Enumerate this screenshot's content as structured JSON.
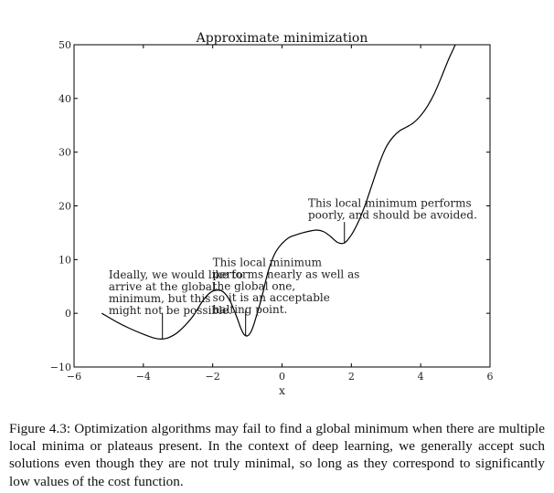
{
  "chart_data": {
    "type": "line",
    "title": "Approximate minimization",
    "xlabel": "x",
    "ylabel": "",
    "xlim": [
      -6,
      6
    ],
    "ylim": [
      -10,
      50
    ],
    "xticks": [
      -6,
      -4,
      -2,
      0,
      2,
      4,
      6
    ],
    "yticks": [
      -10,
      0,
      10,
      20,
      30,
      40,
      50
    ],
    "xtick_labels": [
      "−6",
      "−4",
      "−2",
      "0",
      "2",
      "4",
      "6"
    ],
    "ytick_labels": [
      "−10",
      "0",
      "10",
      "20",
      "30",
      "40",
      "50"
    ],
    "grid": false,
    "series": [
      {
        "color": "#000000",
        "x": [
          -5.2,
          -4.8,
          -4.4,
          -4.0,
          -3.7,
          -3.5,
          -3.3,
          -3.0,
          -2.6,
          -2.3,
          -2.1,
          -1.9,
          -1.7,
          -1.5,
          -1.3,
          -1.2,
          -1.1,
          -1.0,
          -0.9,
          -0.8,
          -0.6,
          -0.4,
          -0.2,
          0.0,
          0.2,
          0.4,
          0.6,
          0.8,
          1.0,
          1.2,
          1.4,
          1.6,
          1.8,
          2.0,
          2.2,
          2.4,
          2.6,
          2.8,
          3.0,
          3.2,
          3.4,
          3.6,
          3.8,
          4.0,
          4.2,
          4.4,
          4.6,
          4.8,
          5.0
        ],
        "y": [
          0.0,
          -1.5,
          -2.8,
          -3.9,
          -4.6,
          -4.8,
          -4.6,
          -3.5,
          -0.8,
          2.2,
          3.7,
          4.3,
          4.0,
          2.3,
          -0.8,
          -2.6,
          -3.9,
          -4.2,
          -3.5,
          -1.8,
          2.6,
          7.8,
          11.2,
          13.0,
          14.1,
          14.6,
          15.0,
          15.3,
          15.5,
          15.2,
          14.3,
          13.2,
          13.1,
          14.6,
          17.0,
          20.2,
          24.0,
          27.8,
          30.9,
          32.8,
          34.0,
          34.7,
          35.5,
          36.8,
          38.6,
          41.0,
          44.0,
          47.2,
          50.0
        ]
      }
    ],
    "annotations": [
      {
        "lines": [
          "Ideally, we would like to",
          "arrive at the global",
          "minimum, but this",
          "might not be possible."
        ],
        "target_x": -3.45,
        "target_y": -4.8,
        "anchor_x": -3.45,
        "anchor_y": 0.0,
        "text_x": -5.0,
        "text_y": 6.5,
        "line_spacing": 2.2
      },
      {
        "lines": [
          "This local minimum",
          "performs nearly as well as",
          "the global one,",
          "so it is an acceptable",
          "halting point."
        ],
        "target_x": -1.05,
        "target_y": -4.2,
        "anchor_x": -1.05,
        "anchor_y": 0.5,
        "text_x": -2.0,
        "text_y": 8.8,
        "line_spacing": 2.2
      },
      {
        "lines": [
          "This local minimum performs",
          "poorly, and should be avoided."
        ],
        "target_x": 1.8,
        "target_y": 13.1,
        "anchor_x": 1.8,
        "anchor_y": 17.0,
        "text_x": 0.75,
        "text_y": 19.8,
        "line_spacing": 2.2
      }
    ]
  },
  "caption": "Figure 4.3: Optimization algorithms may fail to find a global minimum when there are multiple local minima or plateaus present. In the context of deep learning, we generally accept such solutions even though they are not truly minimal, so long as they correspond to significantly low values of the cost function."
}
